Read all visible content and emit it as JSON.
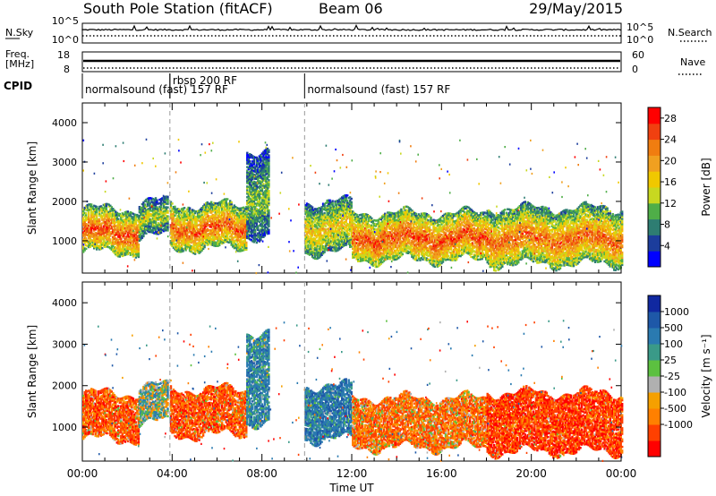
{
  "header": {
    "title": "South Pole Station (fitACF)",
    "beam": "Beam 06",
    "date": "29/May/2015"
  },
  "top_panels": {
    "nsky_label": "N.Sky",
    "nsearch_label": "N.Search",
    "freq_label_1": "Freq.",
    "freq_label_2": "[MHz]",
    "nave_label": "Nave",
    "cpid_label": "CPID",
    "noise_ticks_left": [
      "10^5",
      "10^0"
    ],
    "noise_ticks_right": [
      "10^5",
      "10^0"
    ],
    "freq_ticks": [
      "18",
      "8"
    ],
    "nave_ticks": [
      "60",
      "0"
    ]
  },
  "cpid": {
    "segments": [
      {
        "start_hour": 0,
        "end_hour": 3.9,
        "label": "normalsound (fast) 157 RF"
      },
      {
        "start_hour": 3.9,
        "end_hour": 9.9,
        "label": "rbsp 200 RF"
      },
      {
        "start_hour": 9.9,
        "end_hour": 24,
        "label": "normalsound (fast) 157 RF"
      }
    ]
  },
  "colors": {
    "power_scale": [
      "#0000ff",
      "#1c3d9c",
      "#2e7d72",
      "#4fae48",
      "#c8d820",
      "#f0c800",
      "#f0a020",
      "#f07d10",
      "#f04010",
      "#ff0000"
    ],
    "velocity_scale": [
      "#ff0000",
      "#ff4000",
      "#ff8000",
      "#f5a000",
      "#b0b0b0",
      "#5cc040",
      "#3a9a88",
      "#2a7ab0",
      "#1e58a8",
      "#1028a0"
    ]
  },
  "chart_data": [
    {
      "type": "heatmap",
      "name": "power",
      "ylabel": "Slant Range [km]",
      "xlabel": "Time UT",
      "xlim": [
        0,
        24
      ],
      "ylim": [
        180,
        4500
      ],
      "x_ticks": [
        "00:00",
        "04:00",
        "08:00",
        "12:00",
        "16:00",
        "20:00",
        "00:00"
      ],
      "y_ticks": [
        1000,
        2000,
        3000,
        4000
      ],
      "colorbar": {
        "label": "Power [dB]",
        "ticks": [
          "4",
          "8",
          "12",
          "16",
          "20",
          "24",
          "28"
        ],
        "range": [
          0,
          30
        ]
      },
      "bands": [
        {
          "start_hour": 0.0,
          "end_hour": 2.5,
          "low_km": 700,
          "high_km": 1800,
          "core_value": 26
        },
        {
          "start_hour": 2.5,
          "end_hour": 3.8,
          "low_km": 1100,
          "high_km": 2000,
          "core_value": 14
        },
        {
          "start_hour": 3.9,
          "end_hour": 7.3,
          "low_km": 800,
          "high_km": 1900,
          "core_value": 25
        },
        {
          "start_hour": 7.3,
          "end_hour": 8.3,
          "low_km": 1100,
          "high_km": 3300,
          "core_value": 12
        },
        {
          "start_hour": 9.9,
          "end_hour": 12.0,
          "low_km": 700,
          "high_km": 2000,
          "core_value": 18
        },
        {
          "start_hour": 12.0,
          "end_hour": 18.0,
          "low_km": 500,
          "high_km": 1700,
          "core_value": 26
        },
        {
          "start_hour": 18.0,
          "end_hour": 24.0,
          "low_km": 400,
          "high_km": 1800,
          "core_value": 24
        }
      ]
    },
    {
      "type": "heatmap",
      "name": "velocity",
      "ylabel": "Slant Range [km]",
      "xlabel": "Time UT",
      "xlim": [
        0,
        24
      ],
      "ylim": [
        180,
        4500
      ],
      "x_ticks": [
        "00:00",
        "04:00",
        "08:00",
        "12:00",
        "16:00",
        "20:00",
        "00:00"
      ],
      "y_ticks": [
        1000,
        2000,
        3000,
        4000
      ],
      "colorbar": {
        "label": "Velocity [m s⁻¹]",
        "ticks": [
          "1000",
          "500",
          "100",
          "25",
          "-25",
          "-100",
          "-500",
          "-1000"
        ]
      },
      "bands": [
        {
          "start_hour": 0.0,
          "end_hour": 2.5,
          "low_km": 700,
          "high_km": 1800,
          "core_value": -300
        },
        {
          "start_hour": 2.5,
          "end_hour": 3.8,
          "low_km": 1100,
          "high_km": 2000,
          "core_value": 100
        },
        {
          "start_hour": 3.9,
          "end_hour": 7.3,
          "low_km": 800,
          "high_km": 1900,
          "core_value": -300
        },
        {
          "start_hour": 7.3,
          "end_hour": 8.3,
          "low_km": 1100,
          "high_km": 3300,
          "core_value": 300
        },
        {
          "start_hour": 9.9,
          "end_hour": 12.0,
          "low_km": 700,
          "high_km": 2000,
          "core_value": 400
        },
        {
          "start_hour": 12.0,
          "end_hour": 18.0,
          "low_km": 500,
          "high_km": 1700,
          "core_value": -200
        },
        {
          "start_hour": 18.0,
          "end_hour": 24.0,
          "low_km": 400,
          "high_km": 1800,
          "core_value": -400
        }
      ]
    }
  ]
}
